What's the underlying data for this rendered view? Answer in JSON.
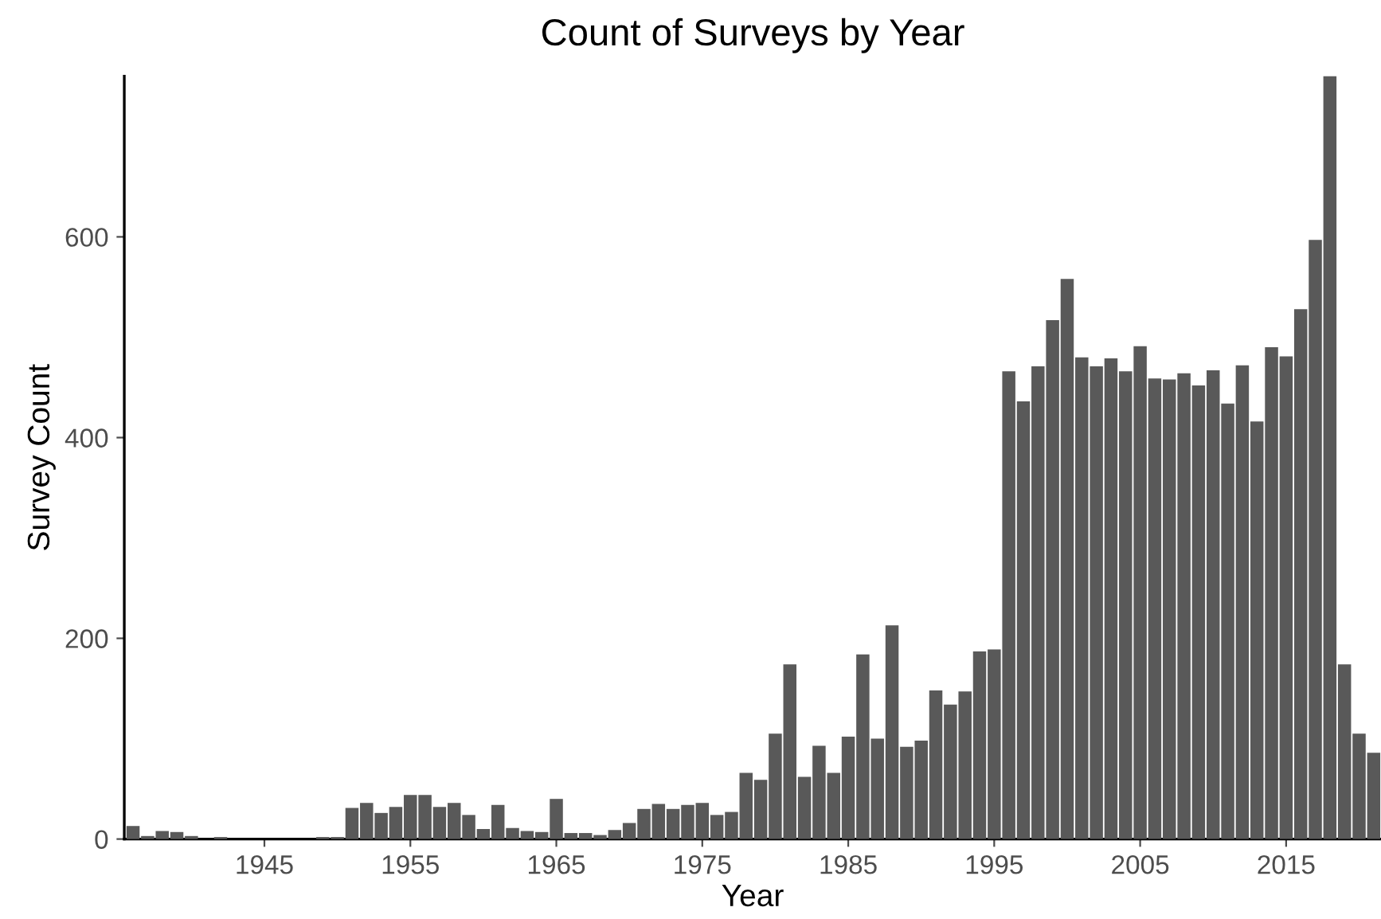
{
  "chart_data": {
    "type": "bar",
    "title": "Count of Surveys by Year",
    "xlabel": "Year",
    "ylabel": "Survey Count",
    "x": [
      1936,
      1937,
      1938,
      1939,
      1940,
      1941,
      1942,
      1943,
      1944,
      1945,
      1946,
      1947,
      1948,
      1949,
      1950,
      1951,
      1952,
      1953,
      1954,
      1955,
      1956,
      1957,
      1958,
      1959,
      1960,
      1961,
      1962,
      1963,
      1964,
      1965,
      1966,
      1967,
      1968,
      1969,
      1970,
      1971,
      1972,
      1973,
      1974,
      1975,
      1976,
      1977,
      1978,
      1979,
      1980,
      1981,
      1982,
      1983,
      1984,
      1985,
      1986,
      1987,
      1988,
      1989,
      1990,
      1991,
      1992,
      1993,
      1994,
      1995,
      1996,
      1997,
      1998,
      1999,
      2000,
      2001,
      2002,
      2003,
      2004,
      2005,
      2006,
      2007,
      2008,
      2009,
      2010,
      2011,
      2012,
      2013,
      2014,
      2015,
      2016,
      2017,
      2018,
      2019,
      2020,
      2021
    ],
    "values": [
      13,
      3,
      8,
      7,
      3,
      0,
      2,
      0,
      0,
      0,
      0,
      0,
      0,
      2,
      2,
      31,
      36,
      26,
      32,
      44,
      44,
      32,
      36,
      24,
      10,
      34,
      11,
      8,
      7,
      40,
      6,
      6,
      4,
      9,
      16,
      30,
      35,
      30,
      34,
      36,
      24,
      27,
      66,
      59,
      105,
      174,
      62,
      93,
      66,
      102,
      184,
      100,
      213,
      92,
      98,
      148,
      134,
      147,
      187,
      189,
      466,
      436,
      471,
      517,
      558,
      480,
      471,
      479,
      466,
      491,
      459,
      458,
      464,
      452,
      467,
      434,
      472,
      416,
      490,
      481,
      528,
      597,
      760,
      174,
      105,
      86
    ],
    "color": "#595959",
    "xlim": [
      1935.4,
      2021.5
    ],
    "xticks": [
      1945,
      1955,
      1965,
      1975,
      1985,
      1995,
      2005,
      2015
    ],
    "ylim": [
      0,
      760
    ],
    "yticks": [
      0,
      200,
      400,
      600
    ],
    "grid": false,
    "legend": false
  }
}
